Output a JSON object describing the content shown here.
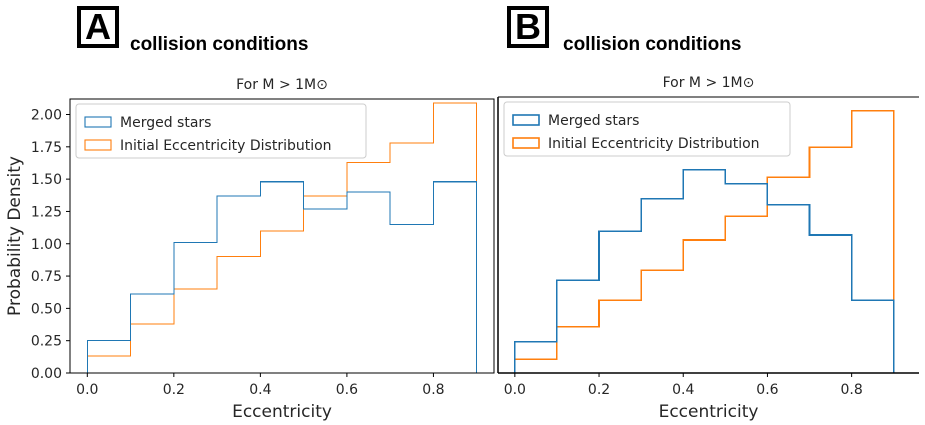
{
  "panels": [
    {
      "letter": "A",
      "caption": "collision conditions"
    },
    {
      "letter": "B",
      "caption": "collision conditions"
    }
  ],
  "colors": {
    "merged": "#1f77b4",
    "initial": "#ff7f0e",
    "axis": "#000000",
    "text": "#262626"
  },
  "chart_data": [
    {
      "type": "histogram",
      "title": "For M > 1M⊙",
      "xlabel": "Eccentricity",
      "ylabel": "Probability Density",
      "xlim": [
        -0.04,
        0.94
      ],
      "ylim": [
        0,
        2.12
      ],
      "x_ticks": [
        0.0,
        0.2,
        0.4,
        0.6,
        0.8
      ],
      "x_tick_labels": [
        "0.0",
        "0.2",
        "0.4",
        "0.6",
        "0.8"
      ],
      "y_ticks": [
        0.0,
        0.25,
        0.5,
        0.75,
        1.0,
        1.25,
        1.5,
        1.75,
        2.0
      ],
      "y_tick_labels": [
        "0.00",
        "0.25",
        "0.50",
        "0.75",
        "1.00",
        "1.25",
        "1.50",
        "1.75",
        "2.00"
      ],
      "bin_edges": [
        0.0,
        0.1,
        0.2,
        0.3,
        0.4,
        0.5,
        0.6,
        0.7,
        0.8,
        0.9
      ],
      "legend": "top-left",
      "series": [
        {
          "name": "Merged stars",
          "values": [
            0.25,
            0.61,
            1.01,
            1.37,
            1.48,
            1.27,
            1.4,
            1.15,
            1.48
          ]
        },
        {
          "name": "Initial Eccentricity Distribution",
          "values": [
            0.13,
            0.38,
            0.65,
            0.9,
            1.1,
            1.37,
            1.63,
            1.78,
            2.09
          ]
        }
      ]
    },
    {
      "type": "histogram",
      "title": "For M > 1M⊙",
      "xlabel": "Eccentricity",
      "ylabel": "",
      "xlim": [
        -0.04,
        0.96
      ],
      "ylim": [
        0,
        2.2
      ],
      "x_ticks": [
        0.0,
        0.2,
        0.4,
        0.6,
        0.8
      ],
      "x_tick_labels": [
        "0.0",
        "0.2",
        "0.4",
        "0.6",
        "0.8"
      ],
      "y_ticks": [],
      "y_tick_labels": [],
      "bin_edges": [
        0.0,
        0.1,
        0.2,
        0.3,
        0.4,
        0.5,
        0.6,
        0.7,
        0.8,
        0.9
      ],
      "legend": "top-left",
      "series": [
        {
          "name": "Merged stars",
          "values": [
            0.25,
            0.74,
            1.13,
            1.39,
            1.62,
            1.51,
            1.34,
            1.1,
            0.58
          ]
        },
        {
          "name": "Initial Eccentricity Distribution",
          "values": [
            0.11,
            0.37,
            0.58,
            0.82,
            1.06,
            1.25,
            1.56,
            1.8,
            2.09
          ]
        }
      ]
    }
  ]
}
